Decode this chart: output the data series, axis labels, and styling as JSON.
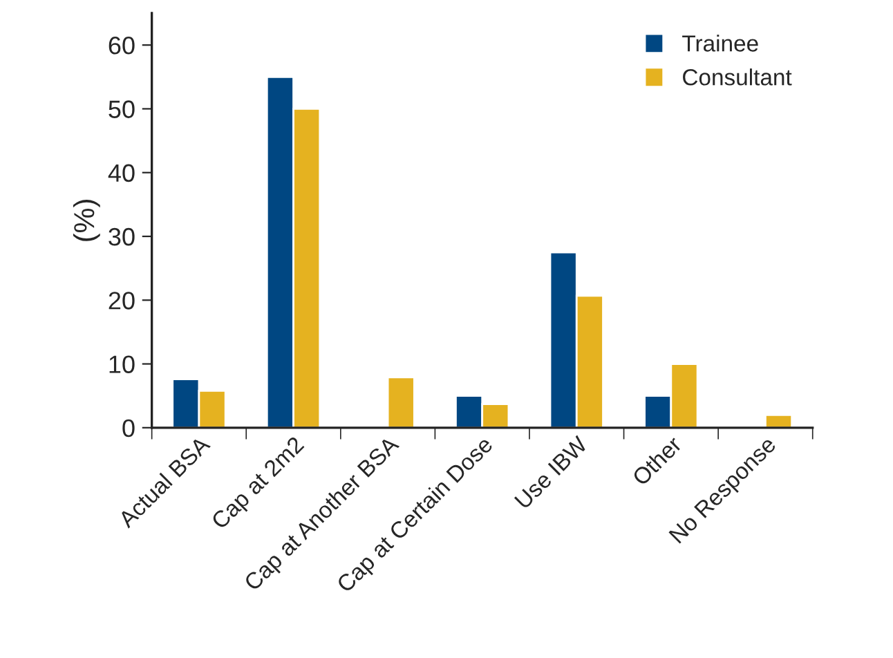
{
  "chart_data": {
    "type": "bar",
    "ylabel": "(%)",
    "categories": [
      "Actual BSA",
      "Cap at 2m2",
      "Cap at Another BSA",
      "Cap at Certain Dose",
      "Use IBW",
      "Other",
      "No Response"
    ],
    "series": [
      {
        "name": "Trainee",
        "color": "#004782",
        "values": [
          7.6,
          55,
          null,
          5,
          27.5,
          5,
          null
        ]
      },
      {
        "name": "Consultant",
        "color": "#e5b220",
        "values": [
          5.8,
          50,
          7.9,
          3.7,
          20.7,
          10,
          2
        ]
      }
    ],
    "ylim": [
      0,
      65
    ],
    "yticks": [
      0,
      10,
      20,
      30,
      40,
      50,
      60
    ],
    "grid": false,
    "legend": "top right"
  }
}
